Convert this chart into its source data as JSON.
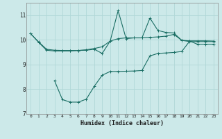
{
  "xlabel": "Humidex (Indice chaleur)",
  "ylabel": "",
  "xlim": [
    -0.5,
    23.5
  ],
  "ylim": [
    7.0,
    11.5
  ],
  "xticks": [
    0,
    1,
    2,
    3,
    4,
    5,
    6,
    7,
    8,
    9,
    10,
    11,
    12,
    13,
    14,
    15,
    16,
    17,
    18,
    19,
    20,
    21,
    22,
    23
  ],
  "yticks": [
    7,
    8,
    9,
    10,
    11
  ],
  "bg_color": "#cce9e9",
  "line_color": "#1a6e64",
  "grid_color": "#b0d8d8",
  "line1_x": [
    0,
    1,
    2,
    3,
    4,
    5,
    6,
    7,
    8,
    9,
    10,
    11,
    12,
    13,
    14,
    15,
    16,
    17,
    18,
    19,
    20,
    21,
    22,
    23
  ],
  "line1_y": [
    10.25,
    9.92,
    9.62,
    9.58,
    9.57,
    9.57,
    9.57,
    9.6,
    9.65,
    9.72,
    9.95,
    10.05,
    10.08,
    10.08,
    10.08,
    10.1,
    10.12,
    10.15,
    10.22,
    9.98,
    9.96,
    9.96,
    9.96,
    9.95
  ],
  "line2_x": [
    0,
    1,
    2,
    3,
    4,
    5,
    6,
    7,
    8,
    9,
    10,
    11,
    12,
    13,
    14,
    15,
    16,
    17,
    18,
    19,
    20,
    21,
    22,
    23
  ],
  "line2_y": [
    10.25,
    9.9,
    9.58,
    9.55,
    9.55,
    9.55,
    9.57,
    9.58,
    9.62,
    9.45,
    9.95,
    11.18,
    10.05,
    10.08,
    10.08,
    10.88,
    10.38,
    10.3,
    10.28,
    9.98,
    9.93,
    9.93,
    9.93,
    9.93
  ],
  "line3_x": [
    3,
    4,
    5,
    6,
    7,
    8,
    9,
    10,
    11,
    12,
    13,
    14,
    15,
    16,
    17,
    18,
    19,
    20,
    21,
    22,
    23
  ],
  "line3_y": [
    8.35,
    7.58,
    7.48,
    7.48,
    7.6,
    8.12,
    8.57,
    8.72,
    8.72,
    8.73,
    8.74,
    8.76,
    9.35,
    9.45,
    9.47,
    9.49,
    9.53,
    9.95,
    9.82,
    9.82,
    9.82
  ]
}
